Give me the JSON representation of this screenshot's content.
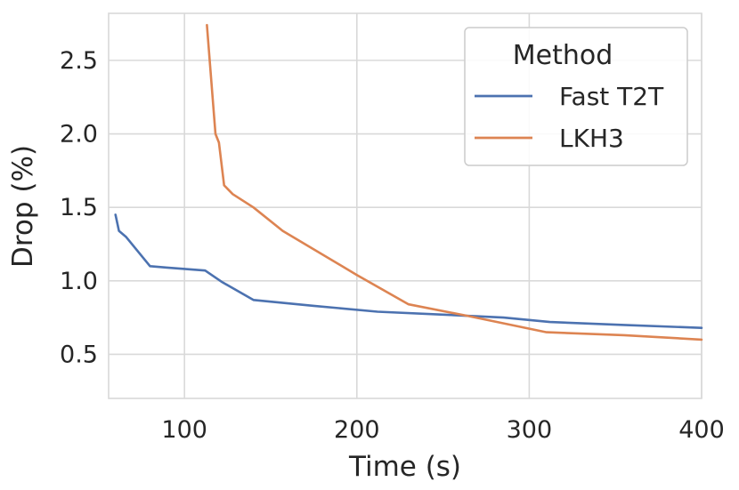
{
  "chart_data": {
    "type": "line",
    "title": "",
    "xlabel": "Time (s)",
    "ylabel": "Drop (%)",
    "xlim": [
      56,
      400
    ],
    "ylim": [
      0.2,
      2.82
    ],
    "xticks": [
      100,
      200,
      300,
      400
    ],
    "xtick_labels": [
      "100",
      "200",
      "300",
      "400"
    ],
    "yticks": [
      0.5,
      1.0,
      1.5,
      2.0,
      2.5
    ],
    "ytick_labels": [
      "0.5",
      "1.0",
      "1.5",
      "2.0",
      "2.5"
    ],
    "grid": true,
    "legend": {
      "title": "Method",
      "position": "top-right"
    },
    "series": [
      {
        "name": "Fast T2T",
        "color": "#4c72b0",
        "x": [
          60,
          62,
          66,
          80,
          90,
          112,
          122,
          140,
          175,
          212,
          250,
          285,
          312,
          355,
          400
        ],
        "y": [
          1.45,
          1.34,
          1.3,
          1.1,
          1.09,
          1.07,
          0.99,
          0.87,
          0.83,
          0.79,
          0.77,
          0.75,
          0.72,
          0.7,
          0.68
        ]
      },
      {
        "name": "LKH3",
        "color": "#dd8452",
        "x": [
          113,
          118,
          120,
          123,
          128,
          140,
          157,
          200,
          230,
          265,
          310,
          355,
          400
        ],
        "y": [
          2.74,
          2.0,
          1.94,
          1.65,
          1.59,
          1.5,
          1.34,
          1.04,
          0.84,
          0.76,
          0.65,
          0.63,
          0.6
        ]
      }
    ]
  }
}
